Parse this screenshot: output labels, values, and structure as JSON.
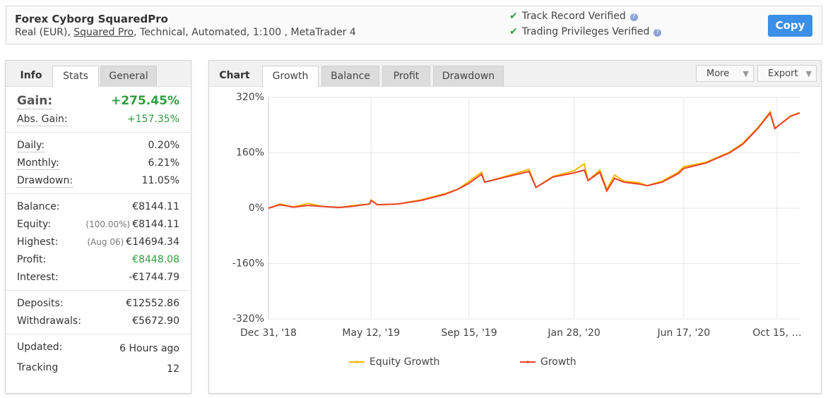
{
  "header": {
    "title": "Forex Cyborg SquaredPro",
    "subtitle_start": "Real (EUR),",
    "subtitle_link": "Squared Pro",
    "subtitle_end": ", Technical, Automated, 1:100 , MetaTrader 4",
    "verified": [
      "Track Record Verified",
      "Trading Privileges Verified"
    ],
    "button": "Copy"
  },
  "info": {
    "tabs": [
      "Info",
      "Stats",
      "General"
    ],
    "groups": [
      [
        {
          "label": "Gain:",
          "value": "+275.45%"
        },
        {
          "label": "Abs. Gain:",
          "value": "+157.35%"
        }
      ],
      [
        {
          "label": "Daily:",
          "value": "0.20%"
        },
        {
          "label": "Monthly:",
          "value": "6.21%"
        },
        {
          "label": "Drawdown:",
          "value": "11.05%"
        }
      ],
      [
        {
          "label": "Balance:",
          "value": "€8144.11"
        },
        {
          "label": "Equity:",
          "note": "(100.00%)",
          "value": "€8144.11"
        },
        {
          "label": "Highest:",
          "note": "(Aug 06)",
          "value": "€14694.34"
        },
        {
          "label": "Profit:",
          "value": "€8448.08"
        },
        {
          "label": "Interest:",
          "value": "-€1744.79"
        }
      ],
      [
        {
          "label": "Deposits:",
          "value": "€12552.86"
        },
        {
          "label": "Withdrawals:",
          "value": "€5672.90"
        }
      ],
      [
        {
          "label": "Updated:",
          "value": "6 Hours ago"
        },
        {
          "label": "Tracking",
          "value": "12"
        }
      ]
    ]
  },
  "chart_tabs": [
    "Chart",
    "Growth",
    "Balance",
    "Profit",
    "Drawdown"
  ],
  "chart_buttons": [
    "More",
    "Export"
  ],
  "chart_data": {
    "type": "line",
    "x": [
      "2018-12-31",
      "2019-01-15",
      "2019-02-01",
      "2019-02-20",
      "2019-03-10",
      "2019-04-01",
      "2019-04-20",
      "2019-05-10",
      "2019-05-12",
      "2019-05-20",
      "2019-06-15",
      "2019-07-15",
      "2019-08-15",
      "2019-09-01",
      "2019-09-15",
      "2019-10-01",
      "2019-10-05",
      "2019-11-01",
      "2019-12-01",
      "2019-12-10",
      "2020-01-01",
      "2020-01-28",
      "2020-02-10",
      "2020-02-15",
      "2020-03-01",
      "2020-03-10",
      "2020-03-20",
      "2020-04-01",
      "2020-04-20",
      "2020-05-01",
      "2020-05-20",
      "2020-06-10",
      "2020-06-17",
      "2020-07-15",
      "2020-08-15",
      "2020-09-01",
      "2020-09-20",
      "2020-10-06",
      "2020-10-12",
      "2020-11-01",
      "2020-11-13"
    ],
    "series": [
      {
        "name": "Equity Growth",
        "color": "#f5b800",
        "values": [
          0,
          12,
          3,
          14,
          5,
          2,
          8,
          12,
          24,
          10,
          12,
          24,
          42,
          55,
          78,
          104,
          75,
          92,
          112,
          60,
          92,
          108,
          128,
          80,
          110,
          55,
          96,
          78,
          74,
          65,
          78,
          104,
          120,
          132,
          162,
          188,
          232,
          278,
          230,
          266,
          276
        ]
      },
      {
        "name": "Growth",
        "color": "#e8412a",
        "values": [
          0,
          10,
          3,
          8,
          5,
          2,
          6,
          12,
          22,
          10,
          12,
          22,
          40,
          55,
          72,
          98,
          75,
          90,
          106,
          60,
          90,
          102,
          110,
          80,
          104,
          50,
          86,
          75,
          70,
          65,
          75,
          100,
          115,
          130,
          160,
          185,
          230,
          275,
          230,
          265,
          275
        ]
      }
    ],
    "xlim": [
      "2018-12-31",
      "2020-11-14"
    ],
    "xticks": [
      {
        "value": "2018-12-31",
        "label": "Dec 31, '18"
      },
      {
        "value": "2019-05-12",
        "label": "May 12, '19"
      },
      {
        "value": "2019-09-15",
        "label": "Sep 15, '19"
      },
      {
        "value": "2020-01-28",
        "label": "Jan 28, '20"
      },
      {
        "value": "2020-06-17",
        "label": "Jun 17, '20"
      },
      {
        "value": "2020-10-15",
        "label": "Oct 15, …"
      }
    ],
    "ylim": [
      -320,
      320
    ],
    "yticks": [
      {
        "value": 320,
        "label": "320%"
      },
      {
        "value": 160,
        "label": "160%"
      },
      {
        "value": 0,
        "label": "0%"
      },
      {
        "value": -160,
        "label": "-160%"
      },
      {
        "value": -320,
        "label": "-320%"
      }
    ],
    "grid": true
  }
}
